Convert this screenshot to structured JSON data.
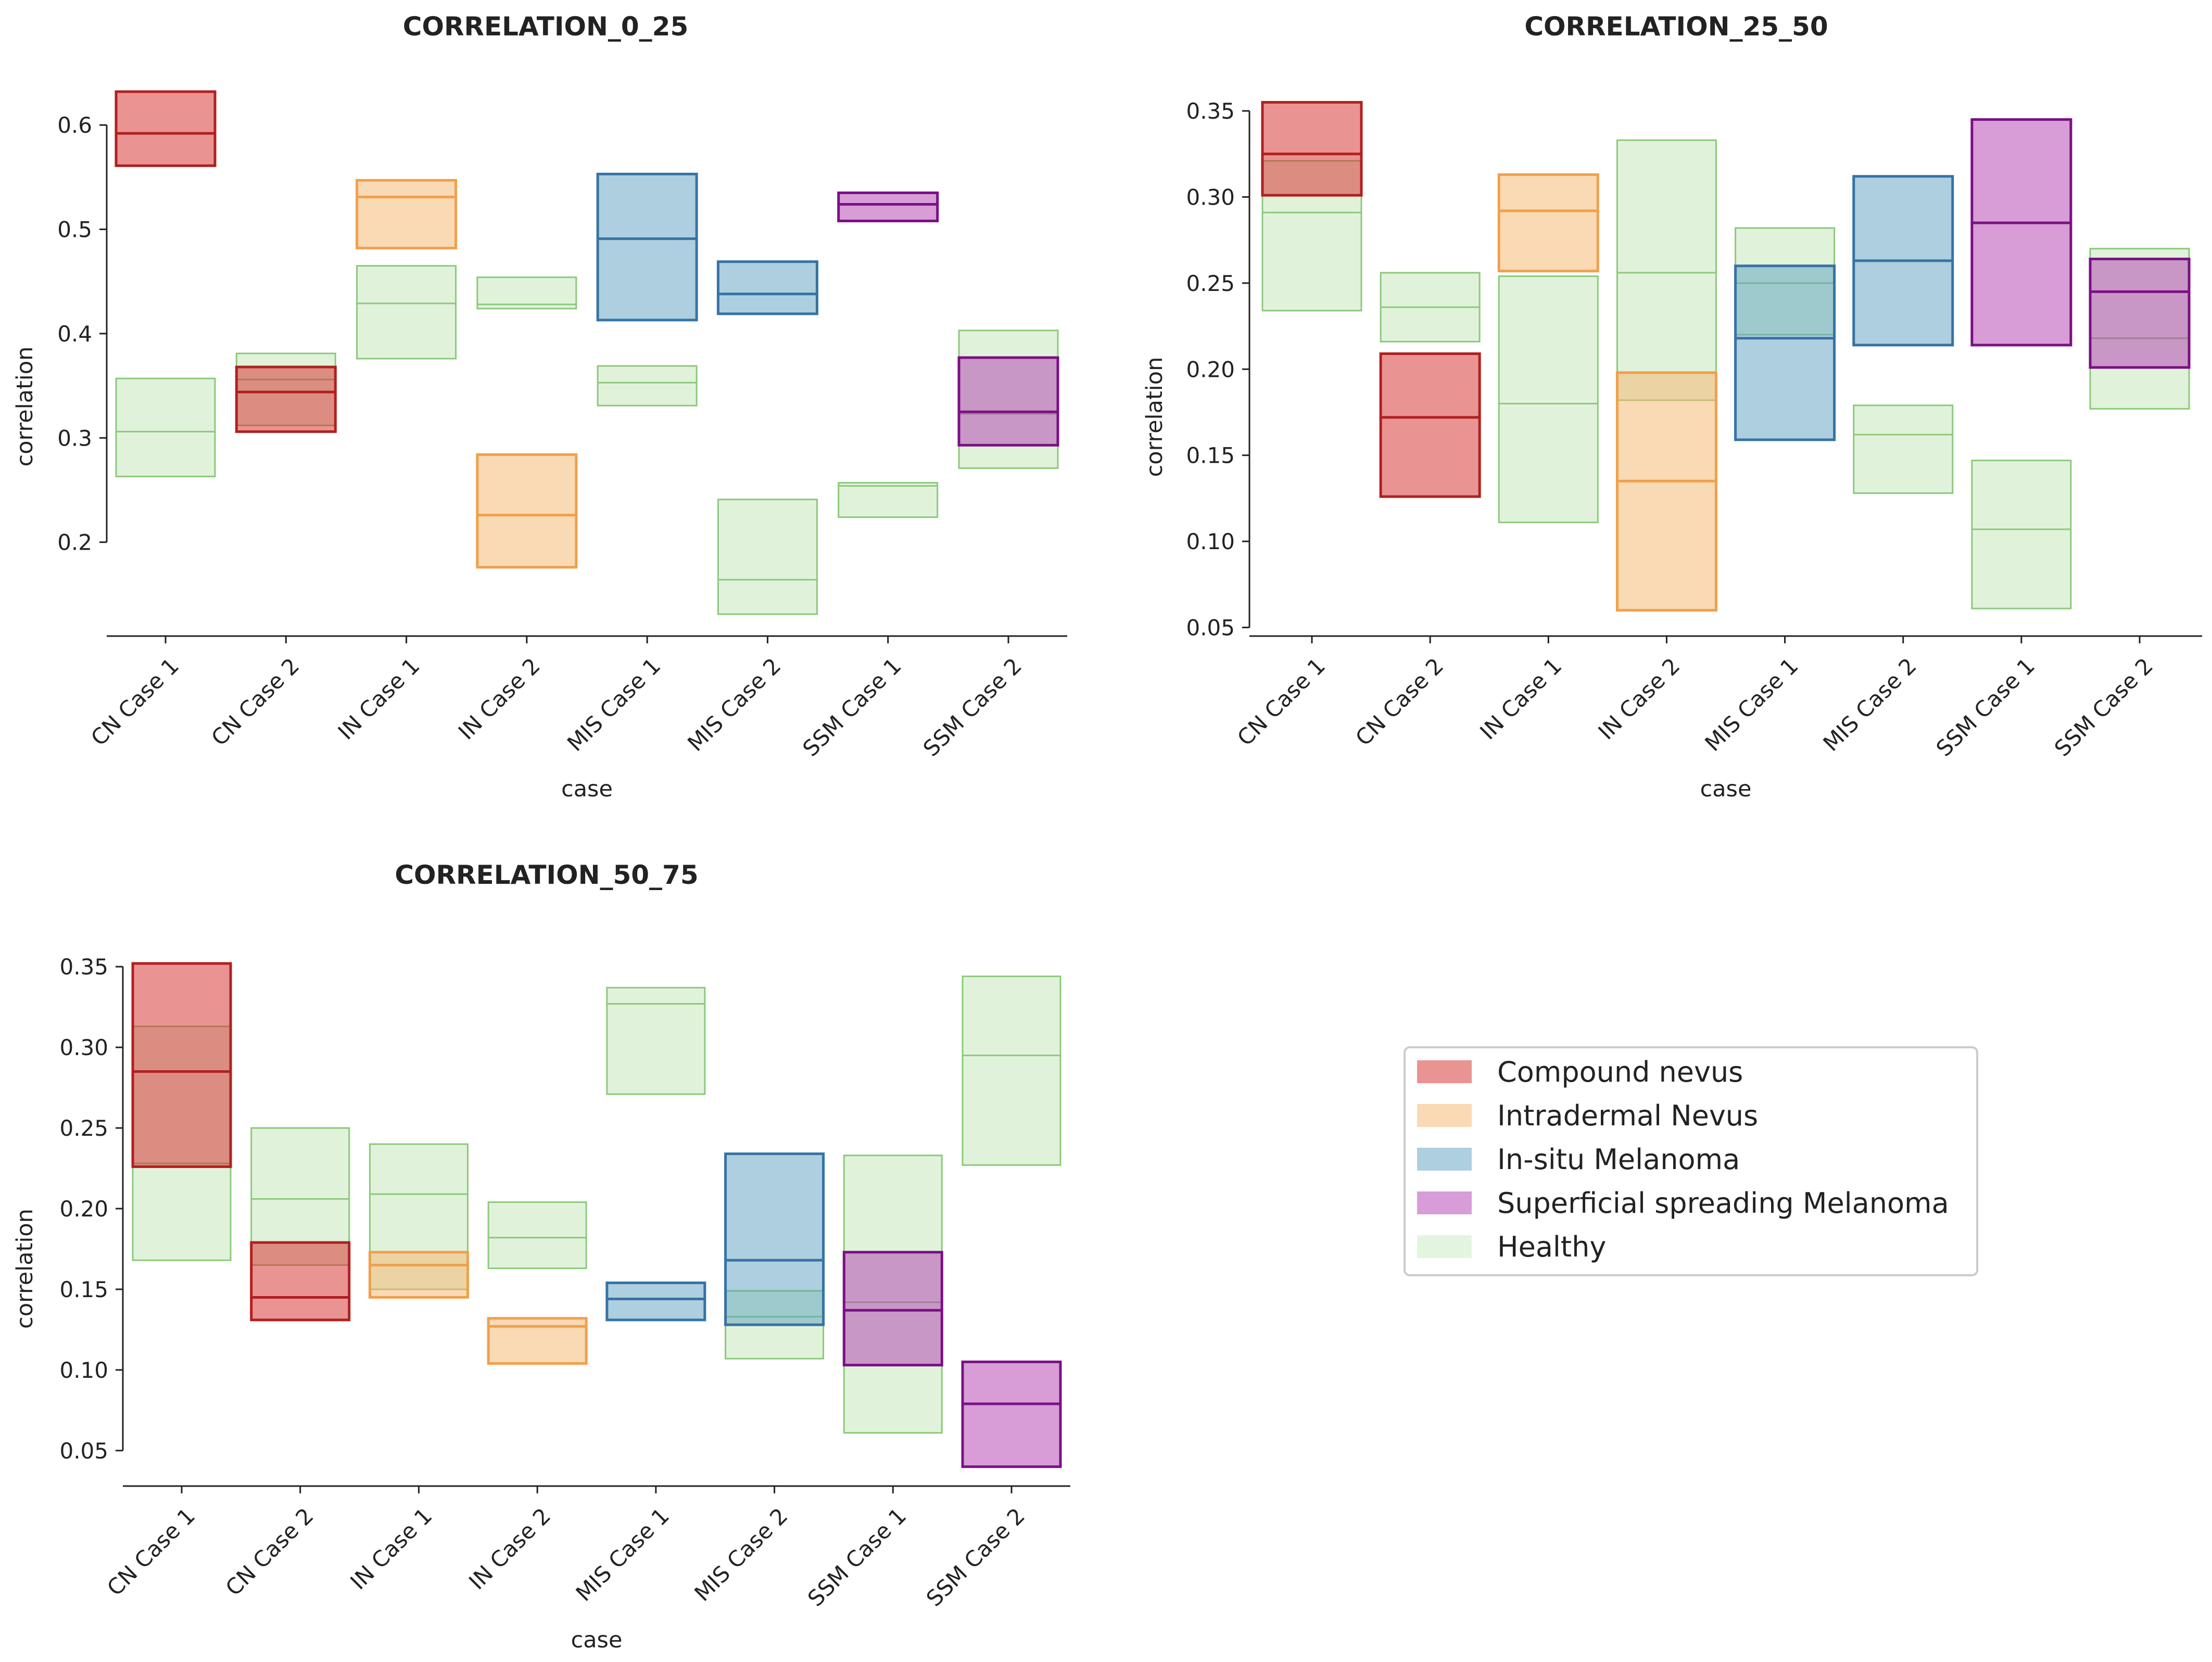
{
  "categories": {
    "Compound nevus": {
      "fill": "#d62728",
      "stroke": "#b21f1f"
    },
    "Intradermal Nevus": {
      "fill": "#f5b36b",
      "stroke": "#f0a04b"
    },
    "In-situ Melanoma": {
      "fill": "#5c9fbf",
      "stroke": "#3673a6"
    },
    "Superficial spreading Melanoma": {
      "fill": "#b23cb0",
      "stroke": "#7b0f86"
    },
    "Healthy": {
      "fill": "#a5dd94",
      "stroke": "#8cc97a"
    }
  },
  "legend": {
    "items": [
      "Compound nevus",
      "Intradermal Nevus",
      "In-situ Melanoma",
      "Superficial spreading Melanoma",
      "Healthy"
    ]
  },
  "chart_data": [
    {
      "type": "box",
      "title": "CORRELATION_0_25",
      "xlabel": "case",
      "ylabel": "correlation",
      "ylim": [
        0.11,
        0.65
      ],
      "yticks": [
        0.2,
        0.3,
        0.4,
        0.5,
        0.6
      ],
      "ytick_labels": [
        "0.2",
        "0.3",
        "0.4",
        "0.5",
        "0.6"
      ],
      "categories": [
        "CN Case 1",
        "CN Case 2",
        "IN Case 1",
        "IN Case 2",
        "MIS Case 1",
        "MIS Case 2",
        "SSM Case 1",
        "SSM Case 2"
      ],
      "boxes": [
        {
          "case": "CN Case 1",
          "group": "Compound nevus",
          "q1": 0.561,
          "median": 0.592,
          "q3": 0.632
        },
        {
          "case": "CN Case 1",
          "group": "Healthy",
          "q1": 0.263,
          "median": 0.306,
          "q3": 0.357
        },
        {
          "case": "CN Case 2",
          "group": "Compound nevus",
          "q1": 0.306,
          "median": 0.344,
          "q3": 0.368
        },
        {
          "case": "CN Case 2",
          "group": "Healthy",
          "q1": 0.312,
          "median": 0.356,
          "q3": 0.381
        },
        {
          "case": "IN Case 1",
          "group": "Intradermal Nevus",
          "q1": 0.482,
          "median": 0.531,
          "q3": 0.547
        },
        {
          "case": "IN Case 1",
          "group": "Healthy",
          "q1": 0.376,
          "median": 0.429,
          "q3": 0.465
        },
        {
          "case": "IN Case 2",
          "group": "Intradermal Nevus",
          "q1": 0.176,
          "median": 0.226,
          "q3": 0.284
        },
        {
          "case": "IN Case 2",
          "group": "Healthy",
          "q1": 0.424,
          "median": 0.428,
          "q3": 0.454
        },
        {
          "case": "MIS Case 1",
          "group": "In-situ Melanoma",
          "q1": 0.413,
          "median": 0.491,
          "q3": 0.553
        },
        {
          "case": "MIS Case 1",
          "group": "Healthy",
          "q1": 0.331,
          "median": 0.353,
          "q3": 0.369
        },
        {
          "case": "MIS Case 2",
          "group": "In-situ Melanoma",
          "q1": 0.419,
          "median": 0.438,
          "q3": 0.469
        },
        {
          "case": "MIS Case 2",
          "group": "Healthy",
          "q1": 0.131,
          "median": 0.164,
          "q3": 0.241
        },
        {
          "case": "SSM Case 1",
          "group": "Superficial spreading Melanoma",
          "q1": 0.508,
          "median": 0.524,
          "q3": 0.535
        },
        {
          "case": "SSM Case 1",
          "group": "Healthy",
          "q1": 0.224,
          "median": 0.254,
          "q3": 0.257
        },
        {
          "case": "SSM Case 2",
          "group": "Superficial spreading Melanoma",
          "q1": 0.293,
          "median": 0.325,
          "q3": 0.377
        },
        {
          "case": "SSM Case 2",
          "group": "Healthy",
          "q1": 0.271,
          "median": 0.323,
          "q3": 0.403
        }
      ]
    },
    {
      "type": "box",
      "title": "CORRELATION_25_50",
      "xlabel": "case",
      "ylabel": "correlation",
      "ylim": [
        0.045,
        0.36
      ],
      "yticks": [
        0.05,
        0.1,
        0.15,
        0.2,
        0.25,
        0.3,
        0.35
      ],
      "ytick_labels": [
        "0.05",
        "0.10",
        "0.15",
        "0.20",
        "0.25",
        "0.30",
        "0.35"
      ],
      "categories": [
        "CN Case 1",
        "CN Case 2",
        "IN Case 1",
        "IN Case 2",
        "MIS Case 1",
        "MIS Case 2",
        "SSM Case 1",
        "SSM Case 2"
      ],
      "boxes": [
        {
          "case": "CN Case 1",
          "group": "Compound nevus",
          "q1": 0.301,
          "median": 0.325,
          "q3": 0.355
        },
        {
          "case": "CN Case 1",
          "group": "Healthy",
          "q1": 0.234,
          "median": 0.291,
          "q3": 0.321
        },
        {
          "case": "CN Case 2",
          "group": "Compound nevus",
          "q1": 0.126,
          "median": 0.172,
          "q3": 0.209
        },
        {
          "case": "CN Case 2",
          "group": "Healthy",
          "q1": 0.216,
          "median": 0.236,
          "q3": 0.256
        },
        {
          "case": "IN Case 1",
          "group": "Intradermal Nevus",
          "q1": 0.257,
          "median": 0.292,
          "q3": 0.313
        },
        {
          "case": "IN Case 1",
          "group": "Healthy",
          "q1": 0.111,
          "median": 0.18,
          "q3": 0.254
        },
        {
          "case": "IN Case 2",
          "group": "Intradermal Nevus",
          "q1": 0.06,
          "median": 0.135,
          "q3": 0.198
        },
        {
          "case": "IN Case 2",
          "group": "Healthy",
          "q1": 0.182,
          "median": 0.256,
          "q3": 0.333
        },
        {
          "case": "MIS Case 1",
          "group": "In-situ Melanoma",
          "q1": 0.159,
          "median": 0.218,
          "q3": 0.26
        },
        {
          "case": "MIS Case 1",
          "group": "Healthy",
          "q1": 0.22,
          "median": 0.25,
          "q3": 0.282
        },
        {
          "case": "MIS Case 2",
          "group": "In-situ Melanoma",
          "q1": 0.214,
          "median": 0.263,
          "q3": 0.312
        },
        {
          "case": "MIS Case 2",
          "group": "Healthy",
          "q1": 0.128,
          "median": 0.162,
          "q3": 0.179
        },
        {
          "case": "SSM Case 1",
          "group": "Superficial spreading Melanoma",
          "q1": 0.214,
          "median": 0.285,
          "q3": 0.345
        },
        {
          "case": "SSM Case 1",
          "group": "Healthy",
          "q1": 0.061,
          "median": 0.107,
          "q3": 0.147
        },
        {
          "case": "SSM Case 2",
          "group": "Superficial spreading Melanoma",
          "q1": 0.201,
          "median": 0.245,
          "q3": 0.264
        },
        {
          "case": "SSM Case 2",
          "group": "Healthy",
          "q1": 0.177,
          "median": 0.218,
          "q3": 0.27
        }
      ]
    },
    {
      "type": "box",
      "title": "CORRELATION_50_75",
      "xlabel": "case",
      "ylabel": "correlation",
      "ylim": [
        0.028,
        0.362
      ],
      "yticks": [
        0.05,
        0.1,
        0.15,
        0.2,
        0.25,
        0.3,
        0.35
      ],
      "ytick_labels": [
        "0.05",
        "0.10",
        "0.15",
        "0.20",
        "0.25",
        "0.30",
        "0.35"
      ],
      "categories": [
        "CN Case 1",
        "CN Case 2",
        "IN Case 1",
        "IN Case 2",
        "MIS Case 1",
        "MIS Case 2",
        "SSM Case 1",
        "SSM Case 2"
      ],
      "boxes": [
        {
          "case": "CN Case 1",
          "group": "Compound nevus",
          "q1": 0.226,
          "median": 0.285,
          "q3": 0.352
        },
        {
          "case": "CN Case 1",
          "group": "Healthy",
          "q1": 0.168,
          "median": 0.228,
          "q3": 0.313
        },
        {
          "case": "CN Case 2",
          "group": "Compound nevus",
          "q1": 0.131,
          "median": 0.145,
          "q3": 0.179
        },
        {
          "case": "CN Case 2",
          "group": "Healthy",
          "q1": 0.165,
          "median": 0.206,
          "q3": 0.25
        },
        {
          "case": "IN Case 1",
          "group": "Intradermal Nevus",
          "q1": 0.145,
          "median": 0.165,
          "q3": 0.173
        },
        {
          "case": "IN Case 1",
          "group": "Healthy",
          "q1": 0.15,
          "median": 0.209,
          "q3": 0.24
        },
        {
          "case": "IN Case 2",
          "group": "Intradermal Nevus",
          "q1": 0.104,
          "median": 0.127,
          "q3": 0.132
        },
        {
          "case": "IN Case 2",
          "group": "Healthy",
          "q1": 0.163,
          "median": 0.182,
          "q3": 0.204
        },
        {
          "case": "MIS Case 1",
          "group": "In-situ Melanoma",
          "q1": 0.131,
          "median": 0.144,
          "q3": 0.154
        },
        {
          "case": "MIS Case 1",
          "group": "Healthy",
          "q1": 0.271,
          "median": 0.327,
          "q3": 0.337
        },
        {
          "case": "MIS Case 2",
          "group": "In-situ Melanoma",
          "q1": 0.128,
          "median": 0.168,
          "q3": 0.234
        },
        {
          "case": "MIS Case 2",
          "group": "Healthy",
          "q1": 0.107,
          "median": 0.133,
          "q3": 0.149
        },
        {
          "case": "SSM Case 1",
          "group": "Superficial spreading Melanoma",
          "q1": 0.103,
          "median": 0.137,
          "q3": 0.173
        },
        {
          "case": "SSM Case 1",
          "group": "Healthy",
          "q1": 0.061,
          "median": 0.142,
          "q3": 0.233
        },
        {
          "case": "SSM Case 2",
          "group": "Superficial spreading Melanoma",
          "q1": 0.04,
          "median": 0.079,
          "q3": 0.105
        },
        {
          "case": "SSM Case 2",
          "group": "Healthy",
          "q1": 0.227,
          "median": 0.295,
          "q3": 0.344
        }
      ]
    }
  ]
}
